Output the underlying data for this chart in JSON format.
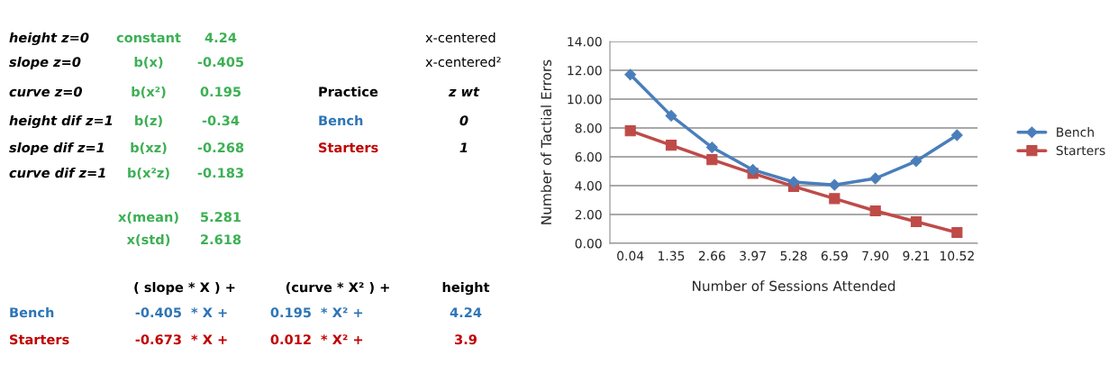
{
  "chart_data": [
    {
      "type": "other",
      "annotations": [
        "height z=0",
        "constant",
        "4.24",
        "x-centered",
        "slope z=0",
        "b(x)",
        "-0.405",
        "x-centered²",
        "curve z=0",
        "b(x²)",
        "0.195",
        "Practice",
        "z wt",
        "height dif z=1",
        "b(z)",
        "-0.34",
        "Bench",
        "0",
        "slope dif z=1",
        "b(xz)",
        "-0.268",
        "Starters",
        "1",
        "curve dif z=1",
        "b(x²z)",
        "-0.183",
        "x(mean)",
        "5.281",
        "x(std)",
        "2.618",
        "( slope * X ) +",
        "(curve * X² ) +",
        "height",
        "Bench",
        "-0.405",
        "* X +",
        "0.195",
        "* X² +",
        "4.24",
        "Starters",
        "-0.673",
        "* X +",
        "0.012",
        "* X² +",
        "3.9"
      ]
    },
    {
      "type": "line",
      "xlabel": "Number of Sessions Attended",
      "ylabel": "Number of Tactial Errors",
      "categories": [
        "0.04",
        "1.35",
        "2.66",
        "3.97",
        "5.28",
        "6.59",
        "7.90",
        "9.21",
        "10.52"
      ],
      "series": [
        {
          "name": "Bench",
          "color": "#4a7ebb",
          "marker": "diamond",
          "values": [
            11.7,
            8.85,
            6.65,
            5.1,
            4.25,
            4.05,
            4.5,
            5.7,
            7.5
          ]
        },
        {
          "name": "Starters",
          "color": "#be4b48",
          "marker": "square",
          "values": [
            7.8,
            6.8,
            5.8,
            4.85,
            3.95,
            3.1,
            2.25,
            1.5,
            0.75
          ]
        }
      ],
      "ylim": [
        0,
        14
      ],
      "yticks": [
        {
          "value": 0,
          "label": "0.00"
        },
        {
          "value": 2,
          "label": "2.00"
        },
        {
          "value": 4,
          "label": "4.00"
        },
        {
          "value": 6,
          "label": "6.00"
        },
        {
          "value": 8,
          "label": "8.00"
        },
        {
          "value": 10,
          "label": "10.00"
        },
        {
          "value": 12,
          "label": "12.00"
        },
        {
          "value": 14,
          "label": "14.00"
        }
      ],
      "grid": "y",
      "legend": "right"
    }
  ]
}
